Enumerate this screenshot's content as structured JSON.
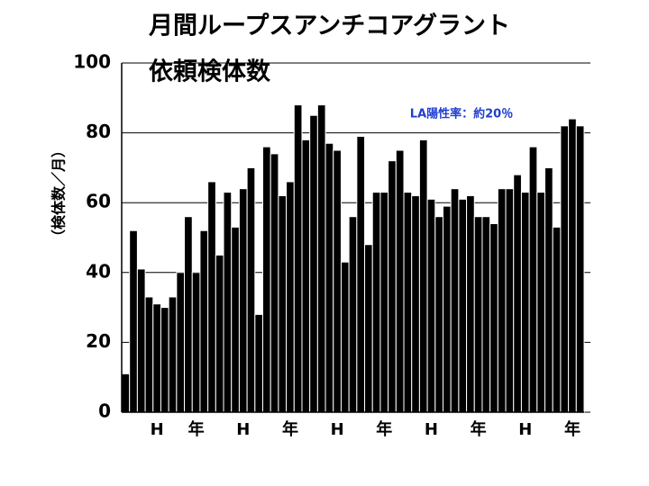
{
  "chart_data": {
    "type": "bar",
    "title": "月間ループスアンチコアグラント",
    "subtitle": "依頼検体数",
    "y_label": "（検体数／月）",
    "annotation": "LA陽性率：約20％",
    "categories": [
      null,
      null,
      null,
      null,
      "H",
      null,
      null,
      null,
      null,
      "年",
      null,
      null,
      null,
      null,
      null,
      "H",
      null,
      null,
      null,
      null,
      null,
      "年",
      null,
      null,
      null,
      null,
      null,
      "H",
      null,
      null,
      null,
      null,
      null,
      "年",
      null,
      null,
      null,
      null,
      null,
      "H",
      null,
      null,
      null,
      null,
      null,
      "年",
      null,
      null,
      null,
      null,
      null,
      "H",
      null,
      null,
      null,
      null,
      null,
      "年",
      null
    ],
    "values": [
      11,
      52,
      41,
      33,
      31,
      30,
      33,
      40,
      56,
      40,
      52,
      66,
      45,
      63,
      53,
      64,
      70,
      28,
      76,
      74,
      62,
      66,
      88,
      78,
      85,
      88,
      77,
      75,
      43,
      56,
      79,
      48,
      63,
      63,
      72,
      75,
      63,
      62,
      78,
      61,
      56,
      59,
      64,
      61,
      62,
      56,
      56,
      54,
      64,
      64,
      68,
      63,
      76,
      63,
      70,
      53,
      82,
      84,
      82
    ],
    "color": "#000000",
    "ylim": [
      0,
      100
    ],
    "yticks": [
      0,
      20,
      40,
      60,
      80,
      100
    ],
    "grid": true
  }
}
